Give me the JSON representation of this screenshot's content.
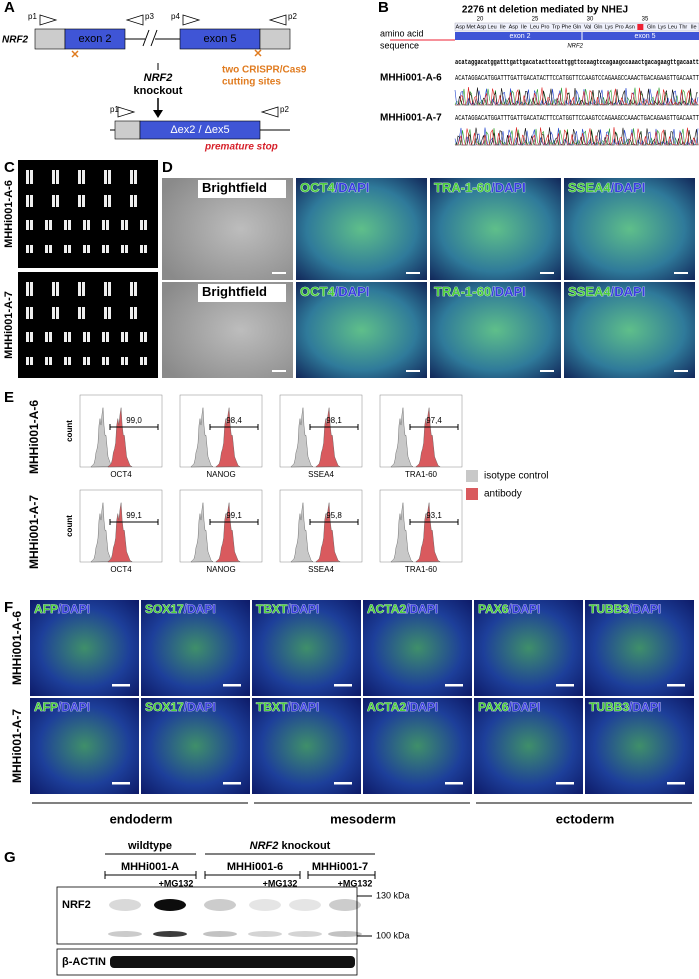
{
  "panel_a": {
    "label": "A",
    "gene": "NRF2",
    "primers": [
      "p1",
      "p3",
      "p4",
      "p2"
    ],
    "exons": [
      "exon 2",
      "exon 5"
    ],
    "knockout": [
      "NRF2",
      "knockout"
    ],
    "cutting": [
      "two CRISPR/Cas9",
      "cutting sites"
    ],
    "ko_primers": [
      "p1",
      "p2"
    ],
    "deletion": "Δex2 / Δex5",
    "stop": "premature stop"
  },
  "panel_b": {
    "label": "B",
    "title": "2276 nt deletion mediated by NHEJ",
    "aa_label": [
      "amino acid",
      "sequence"
    ],
    "positions": [
      20,
      25,
      30,
      35
    ],
    "residues": [
      "Asp",
      "Met",
      "Asp",
      "Leu",
      "Ile",
      "Asp",
      "Ile",
      "Leu",
      "Pro",
      "Trp",
      "Phe",
      "Gln",
      "Val",
      "Gln",
      "Lys",
      "Pro",
      "Asn",
      "Gln",
      "Lys",
      "Leu",
      "Thr",
      "Ile"
    ],
    "exons": [
      "exon 2",
      "exon 5"
    ],
    "gene": "NRF2",
    "reference": "acataggacatggatttgattgacatacttccattggttccaagtccagaagccaaactgacagaagttgacaatt",
    "clones": [
      {
        "name": "MHHi001-A-6",
        "sequence": "ACATAGGACATGGATTTGATTGACATACTTCCATGGTTCCAAGTCCAGAAGCCAAACTGACAGAAGTTGACAATT"
      },
      {
        "name": "MHHi001-A-7",
        "sequence": "ACATAGGACATGGATTTGATTGACATACTTCCATGGTTCCAAGTCCAGAAGCCAAACTGACAGAAGTTGACAATT"
      }
    ]
  },
  "panel_c": {
    "label": "C",
    "clones": [
      "MHHi001-A-6",
      "MHHi001-A-7"
    ]
  },
  "panel_d": {
    "label": "D",
    "columns": [
      [
        "Brightfield"
      ],
      [
        "OCT4",
        "/",
        "DAPI"
      ],
      [
        "TRA-1-60",
        "/",
        "DAPI"
      ],
      [
        "SSEA4",
        "/",
        "DAPI"
      ]
    ]
  },
  "panel_e": {
    "label": "E",
    "rows": [
      "MHHi001-A-6",
      "MHHi001-A-7"
    ],
    "y_label": "count",
    "markers": [
      "OCT4",
      "NANOG",
      "SSEA4",
      "TRA1-60"
    ],
    "percentages": [
      [
        "99,0",
        "98,4",
        "98,1",
        "97,4"
      ],
      [
        "99,1",
        "99,1",
        "95,8",
        "93,1"
      ]
    ],
    "legend": [
      "isotype control",
      "antibody"
    ]
  },
  "panel_f": {
    "label": "F",
    "rows": [
      "MHHi001-A-6",
      "MHHi001-A-7"
    ],
    "markers": [
      [
        "AFP",
        "/",
        "DAPI"
      ],
      [
        "SOX17",
        "/",
        "DAPI"
      ],
      [
        "TBXT",
        "/",
        "DAPI"
      ],
      [
        "ACTA2",
        "/",
        "DAPI"
      ],
      [
        "PAX6",
        "/",
        "DAPI"
      ],
      [
        "TUBB3",
        "/",
        "DAPI"
      ]
    ],
    "germ_layers": [
      "endoderm",
      "mesoderm",
      "ectoderm"
    ]
  },
  "panel_g": {
    "label": "G",
    "groups": [
      "wildtype",
      [
        "NRF2",
        " knockout"
      ]
    ],
    "lines": [
      "MHHi001-A",
      "MHHi001-6",
      "MHHi001-7"
    ],
    "treatment": "+MG132",
    "proteins": [
      "NRF2",
      "β-ACTIN"
    ],
    "sizes": [
      "130 kDa",
      "100 kDa"
    ]
  }
}
